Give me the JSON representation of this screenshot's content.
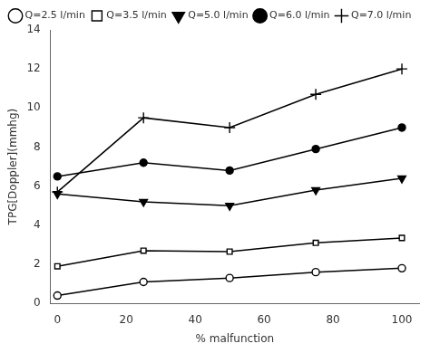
{
  "chart_data": {
    "type": "line",
    "x": [
      0,
      25,
      50,
      75,
      100
    ],
    "series": [
      {
        "name": "Q=2.5 l/min",
        "color": "black",
        "marker": "circle-open",
        "values": [
          0.4,
          1.1,
          1.3,
          1.6,
          1.8
        ]
      },
      {
        "name": "Q=3.5 l/min",
        "color": "black",
        "marker": "square-open",
        "values": [
          1.9,
          2.7,
          2.65,
          3.1,
          3.35
        ]
      },
      {
        "name": "Q=5.0 l/min",
        "color": "black",
        "marker": "triangle-down",
        "values": [
          5.6,
          5.2,
          5.0,
          5.8,
          6.4
        ]
      },
      {
        "name": "Q=6.0 l/min",
        "color": "black",
        "marker": "circle",
        "values": [
          6.5,
          7.2,
          6.8,
          7.9,
          9.0
        ]
      },
      {
        "name": "Q=7.0 l/min",
        "color": "black",
        "marker": "plus",
        "values": [
          5.7,
          9.5,
          9.0,
          10.7,
          12.0
        ]
      }
    ],
    "xlabel": "% malfunction",
    "ylabel": "TPG[Doppler](mmhg)",
    "xlim": [
      -2,
      105
    ],
    "xticks": [
      0,
      20,
      40,
      60,
      80,
      100
    ],
    "ylim": [
      0,
      14
    ],
    "yticks": [
      0,
      2,
      4,
      6,
      8,
      10,
      12,
      14
    ],
    "grid": false,
    "legend": "upper left"
  }
}
